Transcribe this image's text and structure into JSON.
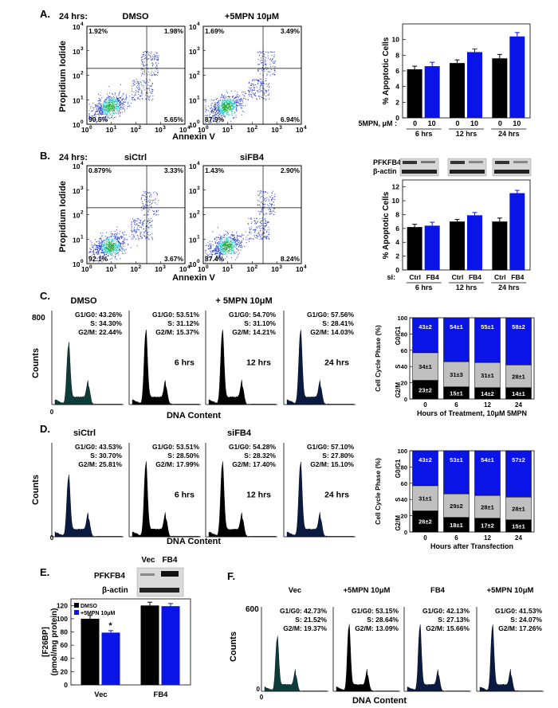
{
  "panelA": {
    "letter": "A.",
    "time": "24 hrs:",
    "plots": [
      {
        "title": "DMSO",
        "quadrants": {
          "ul": "1.92%",
          "ur": "1.98%",
          "ll": "90.5%",
          "lr": "5.65%"
        }
      },
      {
        "title": "+5MPN 10μM",
        "quadrants": {
          "ul": "1.69%",
          "ur": "3.49%",
          "ll": "87.9%",
          "lr": "6.94%"
        }
      }
    ],
    "ylabel": "Propidium Iodide",
    "xlabel": "Annexin V",
    "ticks": [
      "0",
      "1",
      "2",
      "3",
      "4"
    ],
    "bar": {
      "ylabel": "% Apoptotic Cells",
      "yticks": [
        "0",
        "2",
        "4",
        "6",
        "8",
        "10"
      ],
      "row_label": "5MPN, μM :",
      "groups": [
        "6 hrs",
        "12 hrs",
        "24 hrs"
      ],
      "cats": [
        "0",
        "10"
      ]
    }
  },
  "panelB": {
    "letter": "B.",
    "time": "24 hrs:",
    "plots": [
      {
        "title": "siCtrl",
        "quadrants": {
          "ul": "0.879%",
          "ur": "3.33%",
          "ll": "92.1%",
          "lr": "3.67%"
        }
      },
      {
        "title": "siFB4",
        "quadrants": {
          "ul": "1.43%",
          "ur": "2.90%",
          "ll": "87.4%",
          "lr": "8.24%"
        }
      }
    ],
    "ylabel": "Propidium Iodide",
    "xlabel": "Annexin V",
    "blot_labels": [
      "PFKFB4",
      "β-actin"
    ],
    "bar": {
      "ylabel": "% Apoptotic Cells",
      "yticks": [
        "0",
        "2",
        "4",
        "6",
        "8",
        "10",
        "12"
      ],
      "row_label": "si:",
      "groups": [
        "6 hrs",
        "12 hrs",
        "24 hrs"
      ],
      "cats": [
        "Ctrl",
        "FB4"
      ]
    }
  },
  "panelC": {
    "letter": "C.",
    "header_left": "DMSO",
    "header_right": "+ 5MPN 10μM",
    "ymax": "800",
    "ylabel": "Counts",
    "xlabel": "DNA Content",
    "hists": [
      {
        "g1": "G1/G0: 43.26%",
        "s": "S: 34.30%",
        "g2": "G2/M: 22.44%",
        "time": ""
      },
      {
        "g1": "G1/G0: 53.51%",
        "s": "S: 31.12%",
        "g2": "G2/M: 15.37%",
        "time": "6 hrs"
      },
      {
        "g1": "G1/G0: 54.70%",
        "s": "S: 31.10%",
        "g2": "G2/M: 14.21%",
        "time": "12 hrs"
      },
      {
        "g1": "G1/G0: 57.56%",
        "s": "S: 28.41%",
        "g2": "G2/M: 14.03%",
        "time": "24 hrs"
      }
    ],
    "stack": {
      "ylabel": "Cell Cycle Phase (%)",
      "yticks": [
        "0",
        "20",
        "40",
        "60",
        "80",
        "100"
      ],
      "cats": [
        "0",
        "6",
        "12",
        "24"
      ],
      "xlabel": "Hours of Treatment, 10μM 5MPN",
      "phase_labels": [
        "G0/G1",
        "S",
        "G2/M"
      ]
    }
  },
  "panelD": {
    "letter": "D.",
    "header_left": "siCtrl",
    "header_right": "siFB4",
    "ylabel": "Counts",
    "xlabel": "DNA Content",
    "hists": [
      {
        "g1": "G1/G0: 43.53%",
        "s": "S: 30.70%",
        "g2": "G2/M: 25.81%",
        "time": ""
      },
      {
        "g1": "G1/G0: 53.51%",
        "s": "S: 28.50%",
        "g2": "G2/M: 17.99%",
        "time": "6 hrs"
      },
      {
        "g1": "G1/G0: 54.28%",
        "s": "S: 28.32%",
        "g2": "G2/M: 17.40%",
        "time": "12 hrs"
      },
      {
        "g1": "G1/G0: 57.10%",
        "s": "S: 27.80%",
        "g2": "G2/M: 15.10%",
        "time": "24 hrs"
      }
    ],
    "stack": {
      "ylabel": "Cell Cycle Phase (%)",
      "yticks": [
        "0",
        "20",
        "40",
        "60",
        "80",
        "100"
      ],
      "cats": [
        "0",
        "6",
        "12",
        "24"
      ],
      "xlabel": "Hours after Transfection",
      "phase_labels": [
        "G0/G1",
        "S",
        "G2/M"
      ]
    }
  },
  "panelE": {
    "letter": "E.",
    "lanes": [
      "Vec",
      "FB4"
    ],
    "blot_labels": [
      "PFKFB4",
      "β-actin"
    ],
    "legend": [
      "DMSO",
      "+5MPN 10μM"
    ],
    "ylabel1": "[F26BP]",
    "ylabel2": "(pmol/mg protein)",
    "yticks": [
      "0",
      "20",
      "40",
      "60",
      "80",
      "100",
      "120"
    ],
    "groups": [
      "Vec",
      "FB4"
    ],
    "sig": "*"
  },
  "panelF": {
    "letter": "F.",
    "ymax": "600",
    "ylabel": "Counts",
    "xlabel": "DNA Content",
    "hists": [
      {
        "title": "Vec",
        "g1": "G1/G0: 42.73%",
        "s": "S: 21.52%",
        "g2": "G2/M: 19.37%"
      },
      {
        "title": "+5MPN 10μM",
        "g1": "G1/G0: 53.15%",
        "s": "S: 28.64%",
        "g2": "G2/M: 13.09%"
      },
      {
        "title": "FB4",
        "g1": "G1/G0: 42.13%",
        "s": "S: 27.13%",
        "g2": "G2/M: 15.66%"
      },
      {
        "title": "+5MPN 10μM",
        "g1": "G1/G0: 41.53%",
        "s": "S: 24.07%",
        "g2": "G2/M: 17.26%"
      }
    ]
  },
  "colors": {
    "treated": "#0a14e6",
    "control": "#000000",
    "s_phase": "#c0c0c0",
    "teal": "#0d3d3a",
    "navy": "#0a1a40"
  },
  "chart_data": [
    {
      "type": "bar",
      "ylabel": "% Apoptotic Cells",
      "categories": [
        "6 hrs",
        "12 hrs",
        "24 hrs"
      ],
      "series": [
        {
          "name": "0",
          "values": [
            6.2,
            7.0,
            7.6
          ],
          "errors": [
            0.4,
            0.4,
            0.5
          ]
        },
        {
          "name": "10",
          "values": [
            6.6,
            8.4,
            10.4
          ],
          "errors": [
            0.5,
            0.4,
            0.5
          ]
        }
      ],
      "ylim": [
        0,
        12
      ]
    },
    {
      "type": "bar",
      "ylabel": "% Apoptotic Cells",
      "categories": [
        "6 hrs",
        "12 hrs",
        "24 hrs"
      ],
      "series": [
        {
          "name": "Ctrl",
          "values": [
            6.2,
            7.0,
            7.0
          ],
          "errors": [
            0.4,
            0.3,
            0.5
          ]
        },
        {
          "name": "FB4",
          "values": [
            6.4,
            7.9,
            11.1
          ],
          "errors": [
            0.5,
            0.4,
            0.4
          ]
        }
      ],
      "ylim": [
        0,
        13
      ]
    },
    {
      "type": "bar",
      "stacked": true,
      "ylabel": "Cell Cycle Phase (%)",
      "xlabel": "Hours of Treatment, 10μM 5MPN",
      "categories": [
        "0",
        "6",
        "12",
        "24"
      ],
      "series": [
        {
          "name": "G2/M",
          "values": [
            23,
            15,
            14,
            14
          ],
          "labels": [
            "23±2",
            "15±1",
            "14±2",
            "14±1"
          ]
        },
        {
          "name": "S",
          "values": [
            34,
            31,
            31,
            28
          ],
          "labels": [
            "34±1",
            "31±3",
            "31±1",
            "28±1"
          ]
        },
        {
          "name": "G0/G1",
          "values": [
            43,
            54,
            55,
            58
          ],
          "labels": [
            "43±2",
            "54±1",
            "55±1",
            "58±2"
          ]
        }
      ],
      "ylim": [
        0,
        100
      ]
    },
    {
      "type": "bar",
      "stacked": true,
      "ylabel": "Cell Cycle Phase (%)",
      "xlabel": "Hours after Transfection",
      "categories": [
        "0",
        "6",
        "12",
        "24"
      ],
      "series": [
        {
          "name": "G2/M",
          "values": [
            26,
            18,
            17,
            15
          ],
          "labels": [
            "26±2",
            "18±1",
            "17±2",
            "15±1"
          ]
        },
        {
          "name": "S",
          "values": [
            31,
            29,
            28,
            28
          ],
          "labels": [
            "31±1",
            "29±2",
            "28±1",
            "28±1"
          ]
        },
        {
          "name": "G0/G1",
          "values": [
            43,
            53,
            54,
            57
          ],
          "labels": [
            "43±2",
            "53±1",
            "54±1",
            "57±2"
          ]
        }
      ],
      "ylim": [
        0,
        100
      ]
    },
    {
      "type": "bar",
      "ylabel": "[F26BP] (pmol/mg protein)",
      "categories": [
        "Vec",
        "FB4"
      ],
      "series": [
        {
          "name": "DMSO",
          "values": [
            100,
            120
          ],
          "errors": [
            5,
            5
          ]
        },
        {
          "name": "+5MPN 10μM",
          "values": [
            79,
            119
          ],
          "errors": [
            3,
            4
          ]
        }
      ],
      "ylim": [
        0,
        130
      ]
    }
  ]
}
